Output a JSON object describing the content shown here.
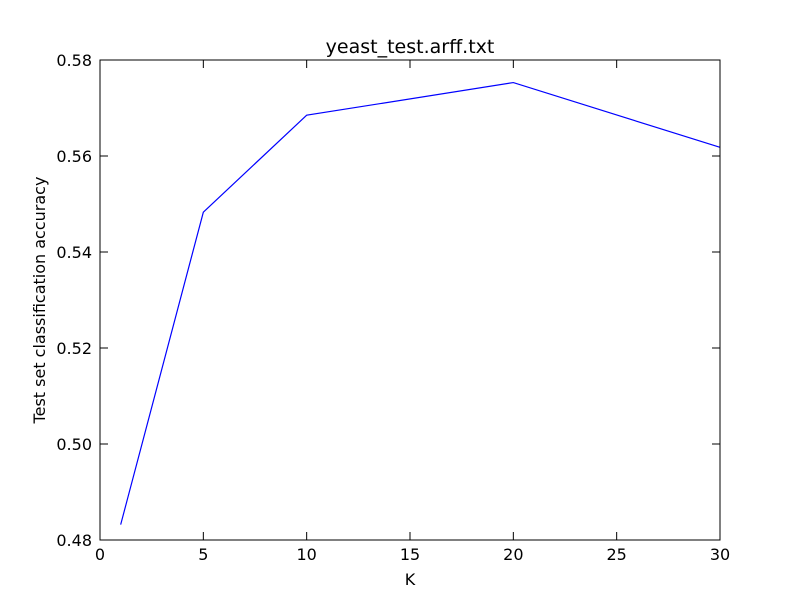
{
  "chart_data": {
    "type": "line",
    "title": "yeast_test.arff.txt",
    "xlabel": "K",
    "ylabel": "Test set classification accuracy",
    "xlim": [
      0,
      30
    ],
    "ylim": [
      0.48,
      0.58
    ],
    "xticks": [
      0,
      5,
      10,
      15,
      20,
      25,
      30
    ],
    "yticks": [
      0.48,
      0.5,
      0.52,
      0.54,
      0.56,
      0.58
    ],
    "xtick_labels": [
      "0",
      "5",
      "10",
      "15",
      "20",
      "25",
      "30"
    ],
    "ytick_labels": [
      "0.48",
      "0.50",
      "0.52",
      "0.54",
      "0.56",
      "0.58"
    ],
    "grid": false,
    "legend": "none",
    "series": [
      {
        "color": "#0000ff",
        "x": [
          1,
          5,
          10,
          20,
          30
        ],
        "y": [
          0.4832,
          0.5483,
          0.5685,
          0.5753,
          0.5618
        ]
      }
    ]
  }
}
